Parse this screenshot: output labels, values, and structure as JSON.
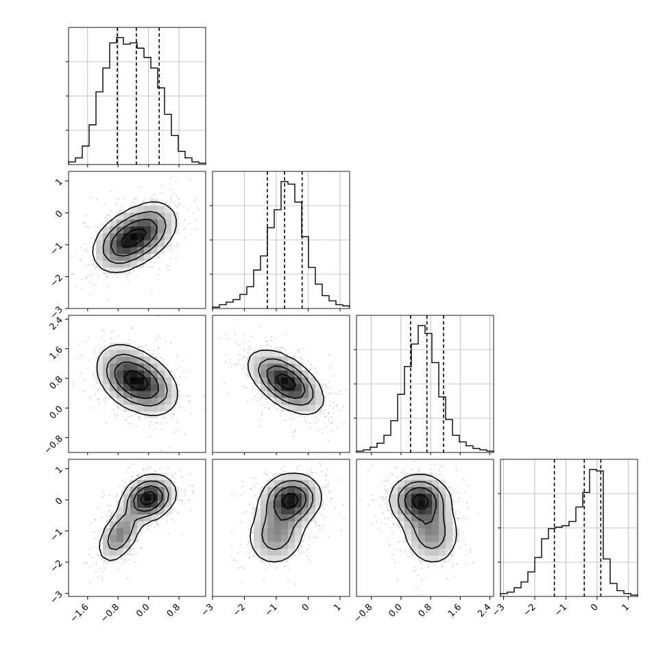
{
  "chart_data": {
    "type": "corner",
    "params": [
      {
        "range": [
          -2.1,
          1.5
        ],
        "ticks": [
          -1.6,
          -0.8,
          0.0,
          0.8
        ],
        "tick_labels": [
          "−1.6",
          "−0.8",
          "0.0",
          "0.8"
        ],
        "quantiles": [
          -0.82,
          -0.32,
          0.28
        ]
      },
      {
        "range": [
          -3.0,
          1.3
        ],
        "ticks": [
          -3,
          -2,
          -1,
          0,
          1
        ],
        "tick_labels": [
          "−3",
          "−2",
          "−1",
          "0",
          "1"
        ],
        "quantiles": [
          -1.28,
          -0.74,
          -0.19
        ]
      },
      {
        "range": [
          -1.2,
          2.5
        ],
        "ticks": [
          -0.8,
          0.0,
          0.8,
          1.6,
          2.4
        ],
        "tick_labels": [
          "−0.8",
          "0.0",
          "0.8",
          "1.6",
          "2.4"
        ],
        "quantiles": [
          0.26,
          0.7,
          1.15
        ]
      },
      {
        "range": [
          -3.1,
          1.3
        ],
        "ticks": [
          -3,
          -2,
          -1,
          0,
          1
        ],
        "tick_labels": [
          "−3",
          "−2",
          "−1",
          "0",
          "1"
        ],
        "quantiles": [
          -1.37,
          -0.41,
          0.12
        ]
      }
    ],
    "histograms": [
      {
        "param": 0,
        "counts": [
          2,
          5,
          14,
          30,
          55,
          73,
          92,
          96,
          91,
          92,
          88,
          81,
          73,
          58,
          38,
          22,
          10,
          5,
          2,
          1
        ]
      },
      {
        "param": 1,
        "counts": [
          1,
          3,
          5,
          7,
          11,
          17,
          30,
          41,
          63,
          77,
          99,
          97,
          83,
          56,
          32,
          19,
          10,
          6,
          3,
          2
        ]
      },
      {
        "param": 2,
        "counts": [
          1,
          2,
          4,
          7,
          13,
          24,
          44,
          65,
          82,
          96,
          90,
          68,
          42,
          25,
          13,
          8,
          5,
          3,
          2,
          1
        ]
      },
      {
        "param": 3,
        "counts": [
          2,
          3,
          6,
          10,
          17,
          27,
          40,
          47,
          48,
          49,
          52,
          62,
          72,
          88,
          87,
          26,
          9,
          4,
          2,
          1
        ]
      }
    ],
    "pairs": [
      {
        "x": 0,
        "y": 1,
        "peaks": [
          {
            "x": -0.65,
            "y": -0.95,
            "sx": 0.4,
            "sy": 0.45,
            "r": 0.3,
            "w": 1.0
          },
          {
            "x": -0.05,
            "y": -0.55,
            "sx": 0.4,
            "sy": 0.45,
            "r": 0.3,
            "w": 0.85
          }
        ]
      },
      {
        "x": 0,
        "y": 2,
        "peaks": [
          {
            "x": -0.55,
            "y": 0.85,
            "sx": 0.4,
            "sy": 0.42,
            "r": -0.3,
            "w": 1.0
          },
          {
            "x": 0.0,
            "y": 0.6,
            "sx": 0.4,
            "sy": 0.4,
            "r": -0.3,
            "w": 0.8
          }
        ]
      },
      {
        "x": 0,
        "y": 3,
        "peaks": [
          {
            "x": 0.0,
            "y": 0.05,
            "sx": 0.33,
            "sy": 0.35,
            "r": 0.2,
            "w": 1.0
          },
          {
            "x": -0.75,
            "y": -1.1,
            "sx": 0.28,
            "sy": 0.45,
            "r": 0.5,
            "w": 0.55
          }
        ]
      },
      {
        "x": 1,
        "y": 2,
        "peaks": [
          {
            "x": -0.7,
            "y": 0.7,
            "sx": 0.55,
            "sy": 0.4,
            "r": -0.55,
            "w": 1.0
          }
        ]
      },
      {
        "x": 1,
        "y": 3,
        "peaks": [
          {
            "x": -0.55,
            "y": 0.0,
            "sx": 0.45,
            "sy": 0.4,
            "r": 0.1,
            "w": 1.0
          },
          {
            "x": -1.0,
            "y": -1.1,
            "sx": 0.45,
            "sy": 0.5,
            "r": 0.1,
            "w": 0.5
          }
        ]
      },
      {
        "x": 2,
        "y": 3,
        "peaks": [
          {
            "x": 0.5,
            "y": 0.0,
            "sx": 0.38,
            "sy": 0.38,
            "r": 0.0,
            "w": 1.0
          },
          {
            "x": 0.8,
            "y": -1.0,
            "sx": 0.38,
            "sy": 0.55,
            "r": -0.1,
            "w": 0.55
          }
        ]
      }
    ],
    "contour_levels": [
      0.1,
      0.3,
      0.55,
      0.85
    ],
    "grid": true,
    "legend": "none"
  }
}
